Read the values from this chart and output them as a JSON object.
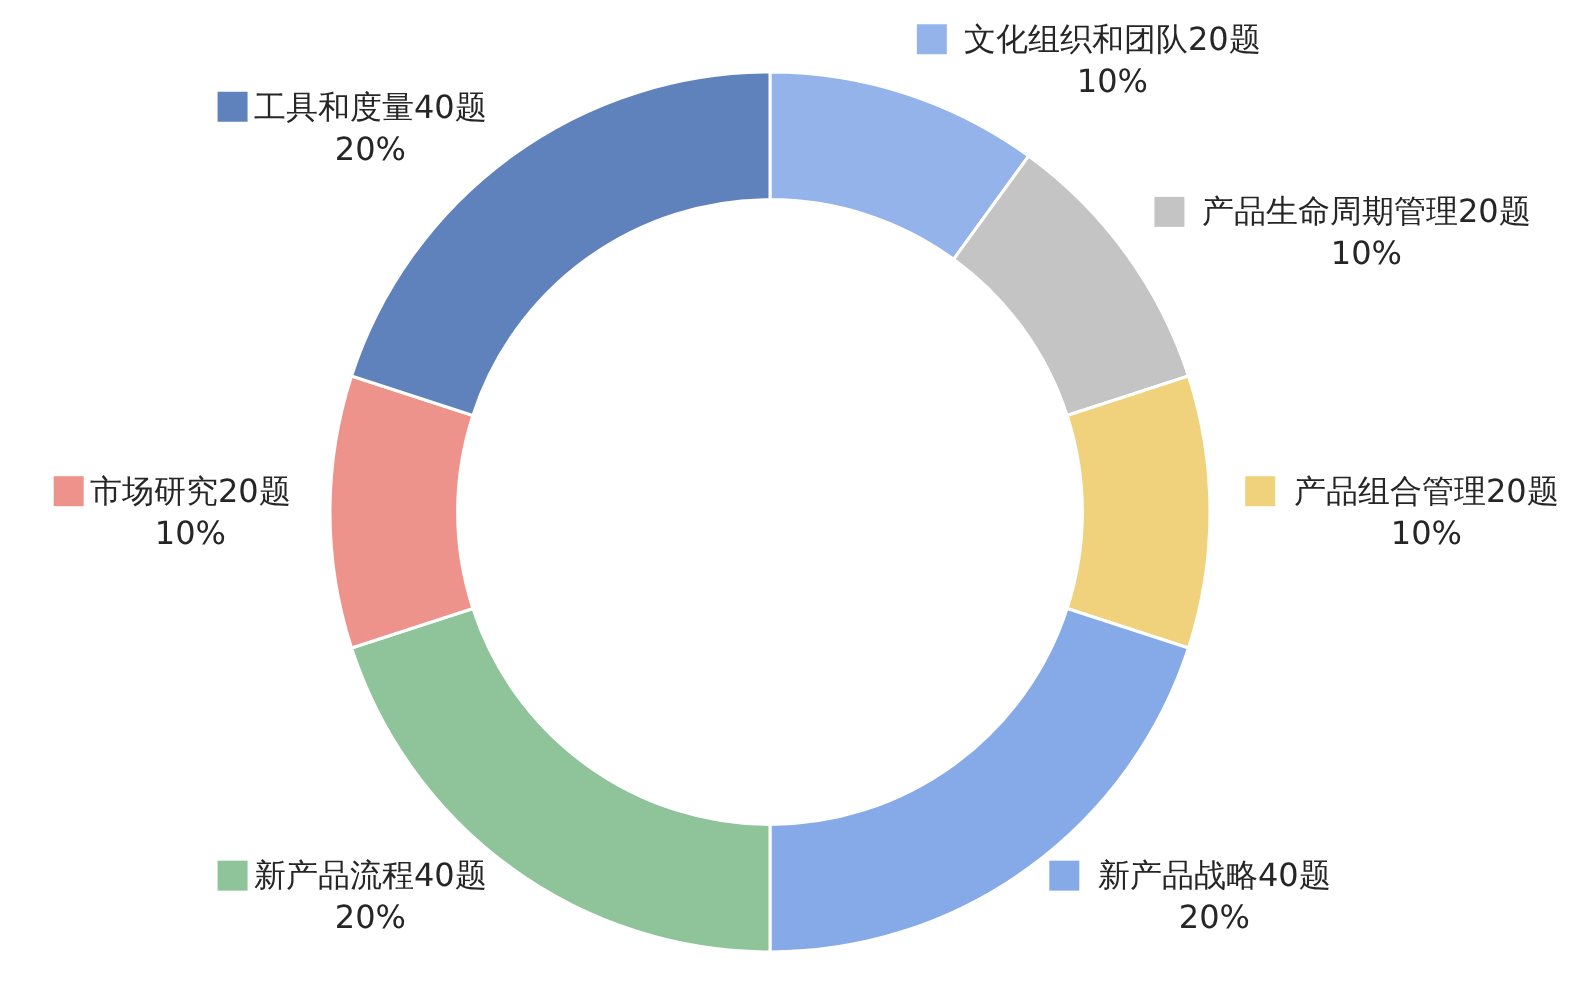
{
  "chart_data": {
    "type": "donut",
    "categories": [
      "文化组织和团队20题",
      "产品生命周期管理20题",
      "产品组合管理20题",
      "新产品战略40题",
      "新产品流程40题",
      "市场研究20题",
      "工具和度量40题"
    ],
    "values": [
      10,
      10,
      10,
      20,
      20,
      10,
      20
    ],
    "colors": [
      "#93b3ea",
      "#c4c4c4",
      "#f0d27c",
      "#86aae8",
      "#8fc49a",
      "#ee928c",
      "#5f82bd"
    ],
    "value_labels": [
      "10%",
      "10%",
      "10%",
      "20%",
      "20%",
      "10%",
      "20%"
    ],
    "legend": "top right"
  }
}
